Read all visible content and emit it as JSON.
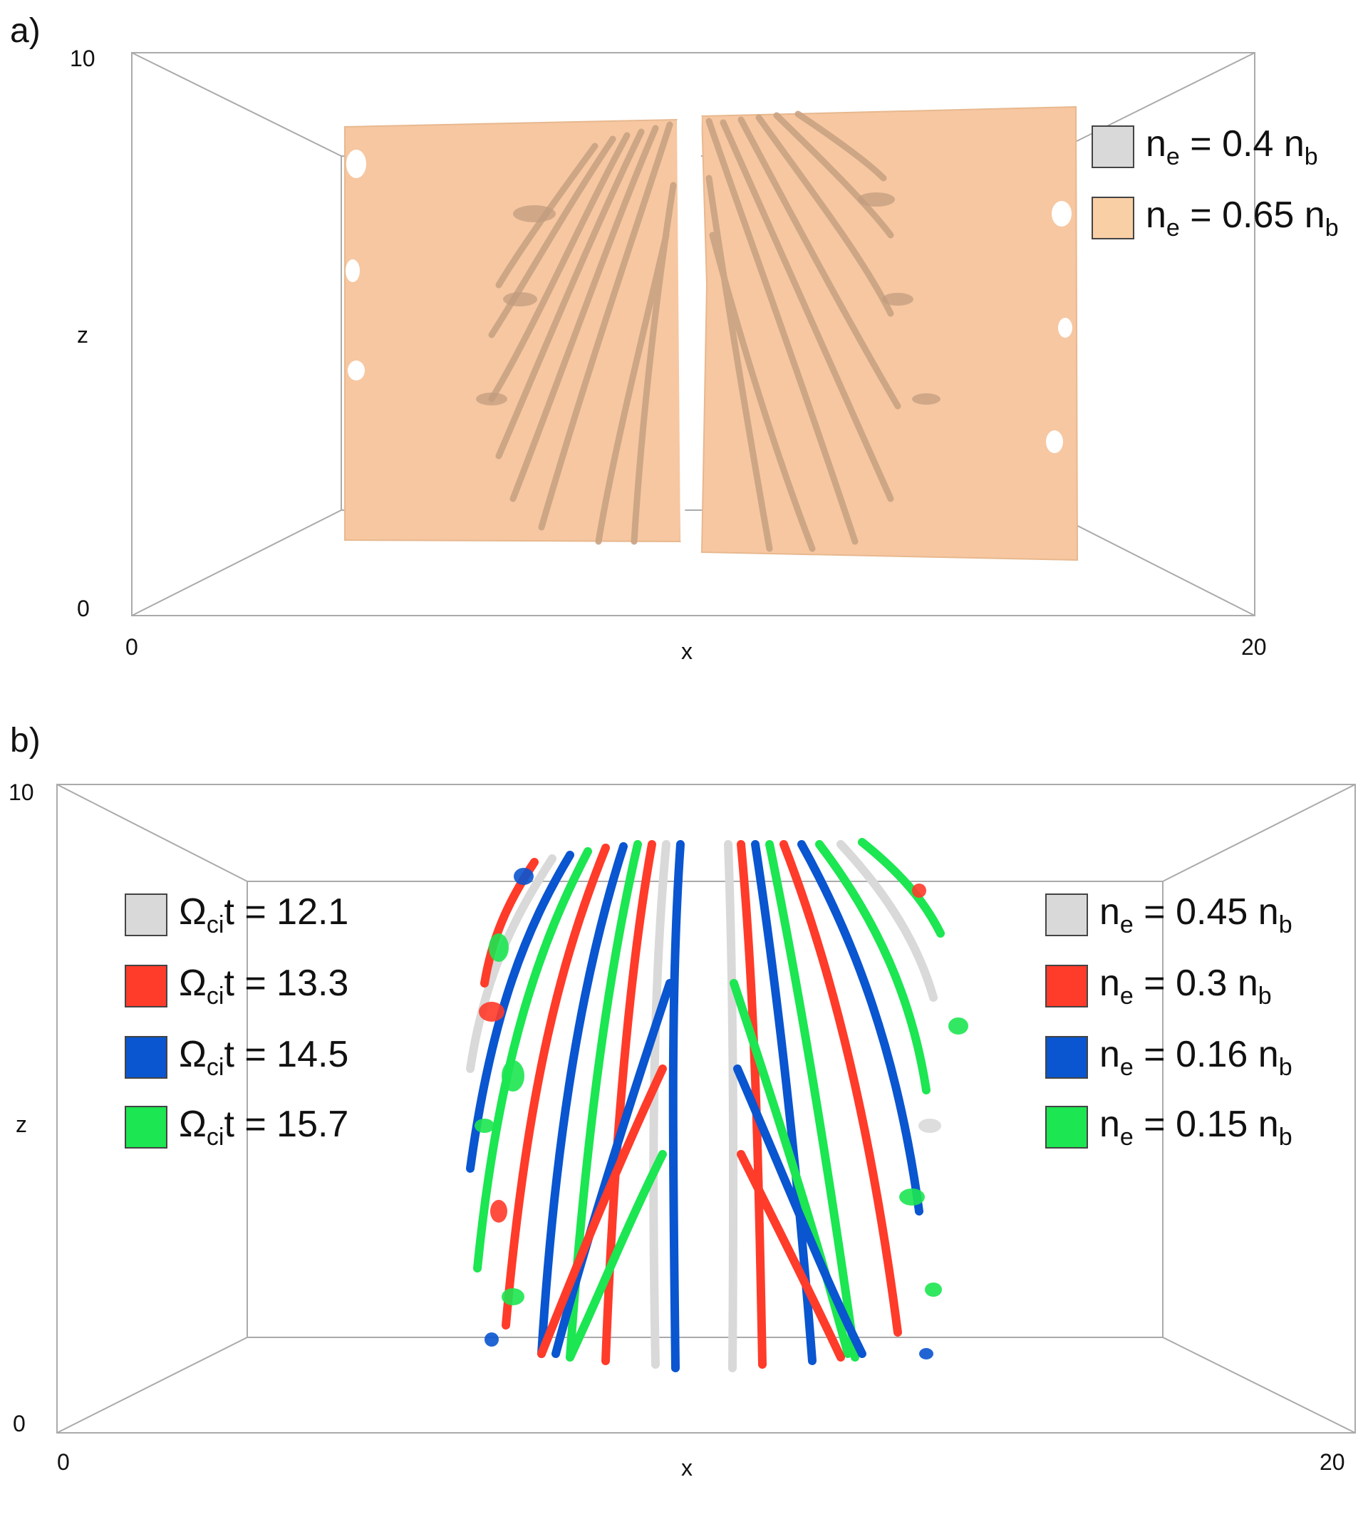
{
  "panel_a": {
    "label": "a)",
    "axes": {
      "x_min": "0",
      "x_max": "20",
      "z_min": "0",
      "z_max": "10",
      "x_name": "x",
      "z_name": "z"
    },
    "legend": [
      {
        "main": "n",
        "sub": "e",
        "rest": " = 0.4 n",
        "sub2": "b",
        "color": "#d9d9d9"
      },
      {
        "main": "n",
        "sub": "e",
        "rest": " = 0.65 n",
        "sub2": "b",
        "color": "#f9cfa6"
      }
    ],
    "surface_color": "#f6c7a1",
    "filament_color": "#c9a383"
  },
  "panel_b": {
    "label": "b)",
    "axes": {
      "x_min": "0",
      "x_max": "20",
      "z_min": "0",
      "z_max": "10",
      "x_name": "x",
      "z_name": "z"
    },
    "legend_left": [
      {
        "main": "Ω",
        "sub": "ci",
        "rest": "t = 12.1",
        "color": "#d9d9d9"
      },
      {
        "main": "Ω",
        "sub": "ci",
        "rest": "t = 13.3",
        "color": "#ff3b2a"
      },
      {
        "main": "Ω",
        "sub": "ci",
        "rest": "t = 14.5",
        "color": "#0a55d0"
      },
      {
        "main": "Ω",
        "sub": "ci",
        "rest": "t = 15.7",
        "color": "#1ce651"
      }
    ],
    "legend_right": [
      {
        "main": "n",
        "sub": "e",
        "rest": " = 0.45 n",
        "sub2": "b",
        "color": "#d9d9d9"
      },
      {
        "main": "n",
        "sub": "e",
        "rest": " = 0.3 n",
        "sub2": "b",
        "color": "#ff3b2a"
      },
      {
        "main": "n",
        "sub": "e",
        "rest": " = 0.16 n",
        "sub2": "b",
        "color": "#0a55d0"
      },
      {
        "main": "n",
        "sub": "e",
        "rest": " = 0.15 n",
        "sub2": "b",
        "color": "#1ce651"
      }
    ]
  }
}
